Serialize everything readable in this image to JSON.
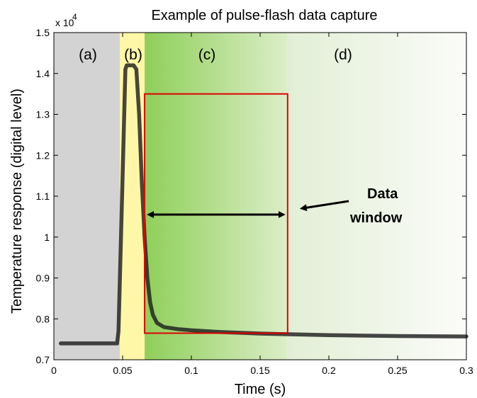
{
  "chart_data": {
    "type": "line",
    "title": "Example of pulse-flash data capture",
    "xlabel": "Time (s)",
    "ylabel": "Temperature response (digital level)",
    "y_multiplier": "x 10",
    "y_multiplier_exponent": "4",
    "xlim": [
      0,
      0.3
    ],
    "ylim": [
      0.7,
      1.5
    ],
    "grid": false,
    "x_ticks": [
      0,
      0.05,
      0.1,
      0.15,
      0.2,
      0.25,
      0.3
    ],
    "x_tick_labels": [
      "0",
      "0.05",
      "0.1",
      "0.15",
      "0.2",
      "0.25",
      "0.3"
    ],
    "y_ticks": [
      0.7,
      0.8,
      0.9,
      1.0,
      1.1,
      1.2,
      1.3,
      1.4,
      1.5
    ],
    "y_tick_labels": [
      "0.7",
      "0.8",
      "0.9",
      "1",
      "1.1",
      "1.2",
      "1.3",
      "1.4",
      "1.5"
    ],
    "regions": [
      {
        "label": "(a)",
        "x_start": 0,
        "x_end": 0.048,
        "color": "#d3d3d3"
      },
      {
        "label": "(b)",
        "x_start": 0.048,
        "x_end": 0.066,
        "color": "#fff7a8"
      },
      {
        "label": "(c)",
        "x_start": 0.066,
        "x_end": 0.17,
        "color": "#9bd46a"
      },
      {
        "label": "(d)",
        "x_start": 0.17,
        "x_end": 0.3,
        "color": "#f4f6ec"
      }
    ],
    "series": [
      {
        "color": "#1f1f1f",
        "x": [
          0.005,
          0.046,
          0.047,
          0.05,
          0.052,
          0.053,
          0.058,
          0.06,
          0.062,
          0.064,
          0.066,
          0.068,
          0.07,
          0.072,
          0.075,
          0.08,
          0.09,
          0.1,
          0.12,
          0.15,
          0.2,
          0.25,
          0.3
        ],
        "y": [
          0.74,
          0.74,
          0.77,
          1.15,
          1.41,
          1.42,
          1.42,
          1.41,
          1.3,
          1.13,
          1.0,
          0.9,
          0.84,
          0.81,
          0.79,
          0.78,
          0.775,
          0.772,
          0.768,
          0.764,
          0.76,
          0.758,
          0.757
        ]
      }
    ],
    "data_window": {
      "x_start": 0.066,
      "x_end": 0.17,
      "y_start": 0.765,
      "y_end": 1.35,
      "color": "#e00000"
    },
    "annotation": {
      "line1": "Data",
      "line2": "window",
      "arrow_y": 1.055
    }
  }
}
